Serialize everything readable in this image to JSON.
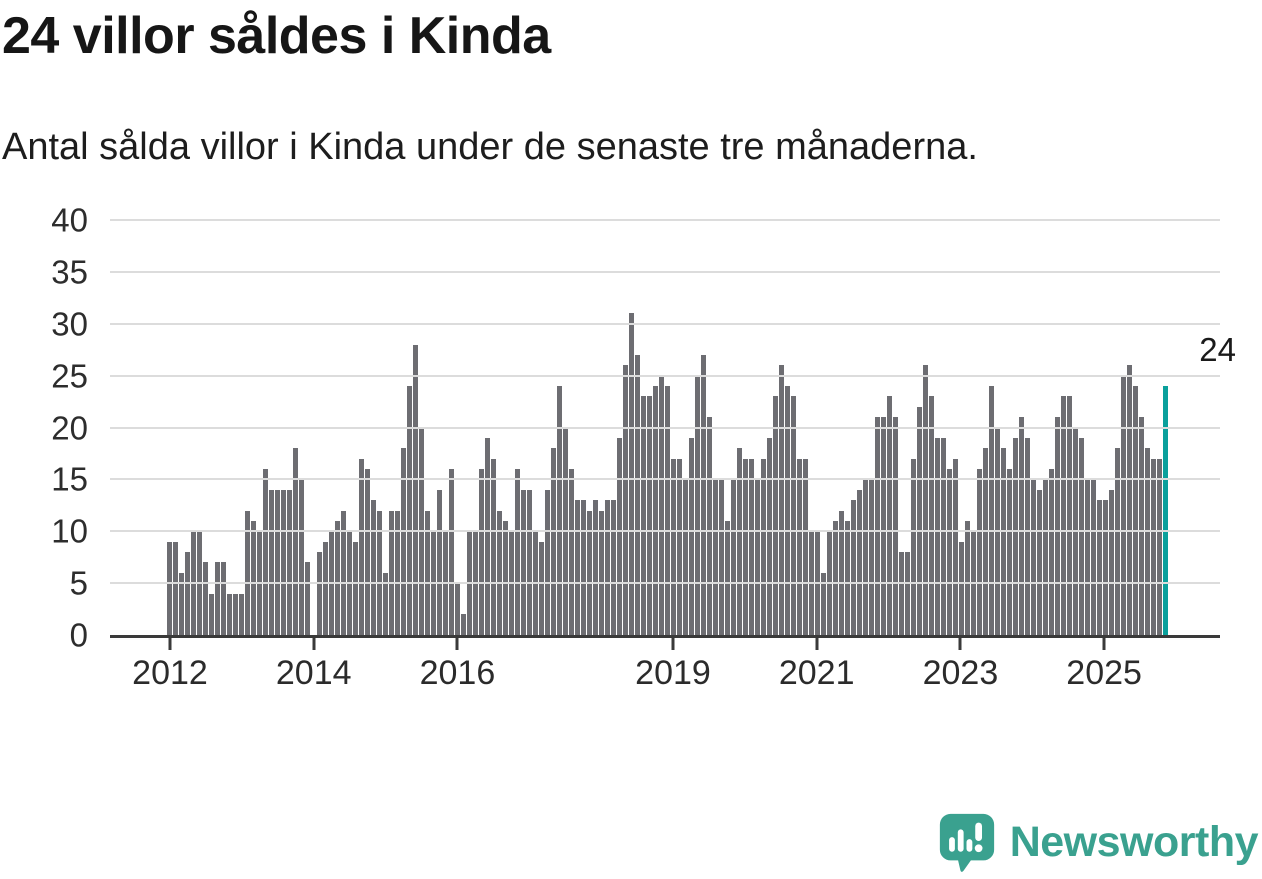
{
  "title": "24 villor såldes i Kinda",
  "subtitle": "Antal sålda villor i Kinda under de senaste tre månaderna.",
  "logo": {
    "text": "Newsworthy",
    "icon": "newsworthy-speech-bubble-chart-icon"
  },
  "colors": {
    "bar": "#6d6d72",
    "highlight": "#0aa09c",
    "grid": "#dcdcdc",
    "axis": "#3a3a3a",
    "title_text": "#161616",
    "label_text": "#2d2d2d",
    "logo": "#3aa18f",
    "background": "#ffffff"
  },
  "chart_data": {
    "type": "bar",
    "title": "24 villor såldes i Kinda",
    "subtitle": "Antal sålda villor i Kinda under de senaste tre månaderna.",
    "xlabel": "",
    "ylabel": "",
    "ylim": [
      0,
      40
    ],
    "y_ticks": [
      0,
      5,
      10,
      15,
      20,
      25,
      30,
      35,
      40
    ],
    "grid": true,
    "legend": false,
    "series_start": "2012-01",
    "series_interval": "monthly",
    "x_ticks": [
      {
        "label": "2012",
        "month_index": 0
      },
      {
        "label": "2014",
        "month_index": 24
      },
      {
        "label": "2016",
        "month_index": 48
      },
      {
        "label": "2019",
        "month_index": 84
      },
      {
        "label": "2021",
        "month_index": 108
      },
      {
        "label": "2023",
        "month_index": 132
      },
      {
        "label": "2025",
        "month_index": 156
      }
    ],
    "values": [
      9,
      9,
      6,
      8,
      10,
      10,
      7,
      4,
      7,
      7,
      4,
      4,
      4,
      12,
      11,
      10,
      16,
      14,
      14,
      14,
      14,
      18,
      15,
      7,
      0,
      8,
      9,
      10,
      11,
      12,
      10,
      9,
      17,
      16,
      13,
      12,
      6,
      12,
      12,
      18,
      24,
      28,
      20,
      12,
      10,
      14,
      10,
      16,
      5,
      2,
      10,
      10,
      16,
      19,
      17,
      12,
      11,
      10,
      16,
      14,
      14,
      10,
      9,
      14,
      18,
      24,
      20,
      16,
      13,
      13,
      12,
      13,
      12,
      13,
      13,
      19,
      26,
      31,
      27,
      23,
      23,
      24,
      25,
      24,
      17,
      17,
      15,
      19,
      25,
      27,
      21,
      15,
      15,
      11,
      15,
      18,
      17,
      17,
      15,
      17,
      19,
      23,
      26,
      24,
      23,
      17,
      17,
      10,
      10,
      6,
      10,
      11,
      12,
      11,
      13,
      14,
      15,
      15,
      21,
      21,
      23,
      21,
      8,
      8,
      17,
      22,
      26,
      23,
      19,
      19,
      16,
      17,
      9,
      11,
      10,
      16,
      18,
      24,
      20,
      18,
      16,
      19,
      21,
      19,
      15,
      14,
      15,
      16,
      21,
      23,
      23,
      20,
      19,
      15,
      15,
      13,
      13,
      14,
      18,
      25,
      26,
      24,
      21,
      18,
      17,
      17,
      24
    ],
    "highlight": {
      "index": 166,
      "value": 24,
      "label": "24",
      "color": "#0aa09c"
    }
  }
}
